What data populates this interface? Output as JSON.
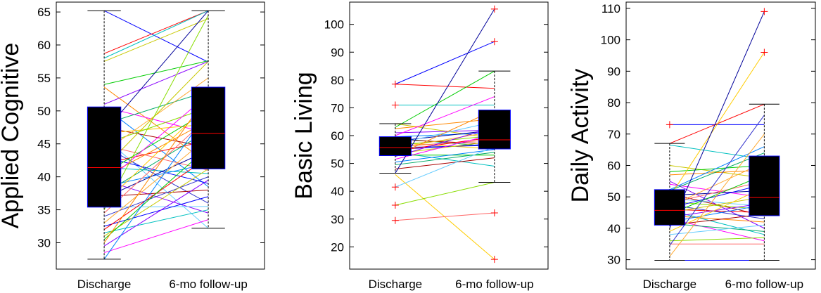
{
  "chart_data": [
    {
      "type": "box",
      "ylabel": "Applied Cognitive",
      "categories": [
        "Discharge",
        "6-mo follow-up"
      ],
      "ylim": [
        26,
        66.5
      ],
      "yticks": [
        30,
        35,
        40,
        45,
        50,
        55,
        60,
        65
      ],
      "grid": false,
      "boxes": [
        {
          "category": "Discharge",
          "q1": 35.4,
          "median": 41.4,
          "q3": 50.6,
          "whisker_low": 27.5,
          "whisker_high": 65.2,
          "outliers": []
        },
        {
          "category": "6-mo follow-up",
          "q1": 41.2,
          "median": 46.6,
          "q3": 53.6,
          "whisker_low": 32.2,
          "whisker_high": 65.2,
          "outliers": []
        }
      ],
      "pairs": [
        [
          65.2,
          57.4
        ],
        [
          58.7,
          65.2
        ],
        [
          58.0,
          65.2
        ],
        [
          57.5,
          64.0
        ],
        [
          54.0,
          57.6
        ],
        [
          53.6,
          42.0
        ],
        [
          51.0,
          57.5
        ],
        [
          50.6,
          46.6
        ],
        [
          50.6,
          38.5
        ],
        [
          48.0,
          53.0
        ],
        [
          47.5,
          44.5
        ],
        [
          46.8,
          65.2
        ],
        [
          46.6,
          48.0
        ],
        [
          46.0,
          32.2
        ],
        [
          45.0,
          50.5
        ],
        [
          44.8,
          41.0
        ],
        [
          44.6,
          36.0
        ],
        [
          43.8,
          55.0
        ],
        [
          43.0,
          39.0
        ],
        [
          42.0,
          45.5
        ],
        [
          41.4,
          40.5
        ],
        [
          41.4,
          57.5
        ],
        [
          40.5,
          50.0
        ],
        [
          40.0,
          48.5
        ],
        [
          39.5,
          34.5
        ],
        [
          39.0,
          52.5
        ],
        [
          38.5,
          42.0
        ],
        [
          37.5,
          47.0
        ],
        [
          37.0,
          38.0
        ],
        [
          36.8,
          44.0
        ],
        [
          36.0,
          51.0
        ],
        [
          35.4,
          35.5
        ],
        [
          35.0,
          64.5
        ],
        [
          34.5,
          49.0
        ],
        [
          34.0,
          40.0
        ],
        [
          33.0,
          46.0
        ],
        [
          32.5,
          37.0
        ],
        [
          32.0,
          43.0
        ],
        [
          31.5,
          35.0
        ],
        [
          31.0,
          41.2
        ],
        [
          30.5,
          44.5
        ],
        [
          30.0,
          52.5
        ],
        [
          29.5,
          39.5
        ],
        [
          28.5,
          33.5
        ],
        [
          27.5,
          50.0
        ]
      ]
    },
    {
      "type": "box",
      "ylabel": "Basic Living",
      "categories": [
        "Discharge",
        "6-mo follow-up"
      ],
      "ylim": [
        12,
        108
      ],
      "yticks": [
        20,
        30,
        40,
        50,
        60,
        70,
        80,
        90,
        100
      ],
      "grid": false,
      "boxes": [
        {
          "category": "Discharge",
          "q1": 52.8,
          "median": 55.7,
          "q3": 59.6,
          "whisker_low": 46.5,
          "whisker_high": 64.3,
          "outliers": [
            78.5,
            71.0,
            41.5,
            35.0,
            29.5
          ]
        },
        {
          "category": "6-mo follow-up",
          "q1": 55.2,
          "median": 58.5,
          "q3": 69.2,
          "whisker_low": 43.2,
          "whisker_high": 83.2,
          "outliers": [
            105.5,
            93.8,
            32.2,
            15.5
          ]
        }
      ],
      "pairs": [
        [
          78.5,
          93.8
        ],
        [
          78.5,
          77.0
        ],
        [
          71.0,
          71.0
        ],
        [
          64.3,
          59.0
        ],
        [
          63.0,
          83.2
        ],
        [
          62.5,
          66.0
        ],
        [
          61.0,
          62.0
        ],
        [
          60.0,
          74.0
        ],
        [
          59.6,
          61.0
        ],
        [
          59.0,
          56.0
        ],
        [
          58.5,
          57.0
        ],
        [
          58.0,
          62.0
        ],
        [
          57.5,
          55.2
        ],
        [
          57.0,
          65.0
        ],
        [
          56.5,
          60.0
        ],
        [
          56.0,
          58.5
        ],
        [
          55.7,
          56.5
        ],
        [
          55.5,
          61.5
        ],
        [
          55.0,
          57.0
        ],
        [
          54.5,
          59.5
        ],
        [
          54.0,
          49.0
        ],
        [
          53.5,
          58.0
        ],
        [
          53.0,
          53.0
        ],
        [
          52.8,
          69.2
        ],
        [
          52.5,
          63.0
        ],
        [
          51.5,
          60.5
        ],
        [
          50.5,
          55.0
        ],
        [
          49.5,
          54.0
        ],
        [
          48.0,
          52.0
        ],
        [
          46.5,
          105.5
        ],
        [
          46.0,
          15.5
        ],
        [
          41.5,
          56.0
        ],
        [
          35.0,
          43.2
        ],
        [
          29.5,
          32.2
        ]
      ]
    },
    {
      "type": "box",
      "ylabel": "Daily Activity",
      "categories": [
        "Discharge",
        "6-mo follow-up"
      ],
      "ylim": [
        27,
        112
      ],
      "yticks": [
        30,
        40,
        50,
        60,
        70,
        80,
        90,
        100,
        110
      ],
      "grid": false,
      "boxes": [
        {
          "category": "Discharge",
          "q1": 41.0,
          "median": 45.7,
          "q3": 52.3,
          "whisker_low": 29.8,
          "whisker_high": 67.0,
          "outliers": [
            73.0
          ]
        },
        {
          "category": "6-mo follow-up",
          "q1": 44.0,
          "median": 49.8,
          "q3": 63.0,
          "whisker_low": 29.8,
          "whisker_high": 79.5,
          "outliers": [
            109.0,
            96.0
          ]
        }
      ],
      "pairs": [
        [
          73.0,
          73.0
        ],
        [
          67.0,
          79.5
        ],
        [
          66.5,
          62.0
        ],
        [
          60.0,
          56.0
        ],
        [
          58.0,
          60.0
        ],
        [
          57.0,
          58.5
        ],
        [
          55.0,
          40.0
        ],
        [
          54.0,
          49.8
        ],
        [
          52.3,
          66.0
        ],
        [
          52.0,
          64.0
        ],
        [
          51.0,
          44.0
        ],
        [
          50.5,
          52.0
        ],
        [
          50.0,
          96.0
        ],
        [
          49.5,
          47.0
        ],
        [
          48.5,
          46.0
        ],
        [
          48.0,
          55.0
        ],
        [
          47.5,
          43.0
        ],
        [
          47.0,
          61.0
        ],
        [
          46.5,
          54.0
        ],
        [
          46.0,
          45.0
        ],
        [
          45.7,
          38.0
        ],
        [
          45.0,
          50.0
        ],
        [
          44.5,
          57.0
        ],
        [
          44.0,
          42.0
        ],
        [
          43.5,
          48.0
        ],
        [
          43.0,
          36.0
        ],
        [
          42.0,
          47.5
        ],
        [
          41.5,
          39.0
        ],
        [
          41.0,
          44.5
        ],
        [
          40.0,
          109.0
        ],
        [
          39.0,
          53.0
        ],
        [
          38.0,
          41.0
        ],
        [
          36.0,
          37.0
        ],
        [
          35.0,
          35.0
        ],
        [
          34.5,
          76.0
        ],
        [
          31.0,
          70.0
        ],
        [
          29.8,
          29.8
        ]
      ]
    }
  ]
}
